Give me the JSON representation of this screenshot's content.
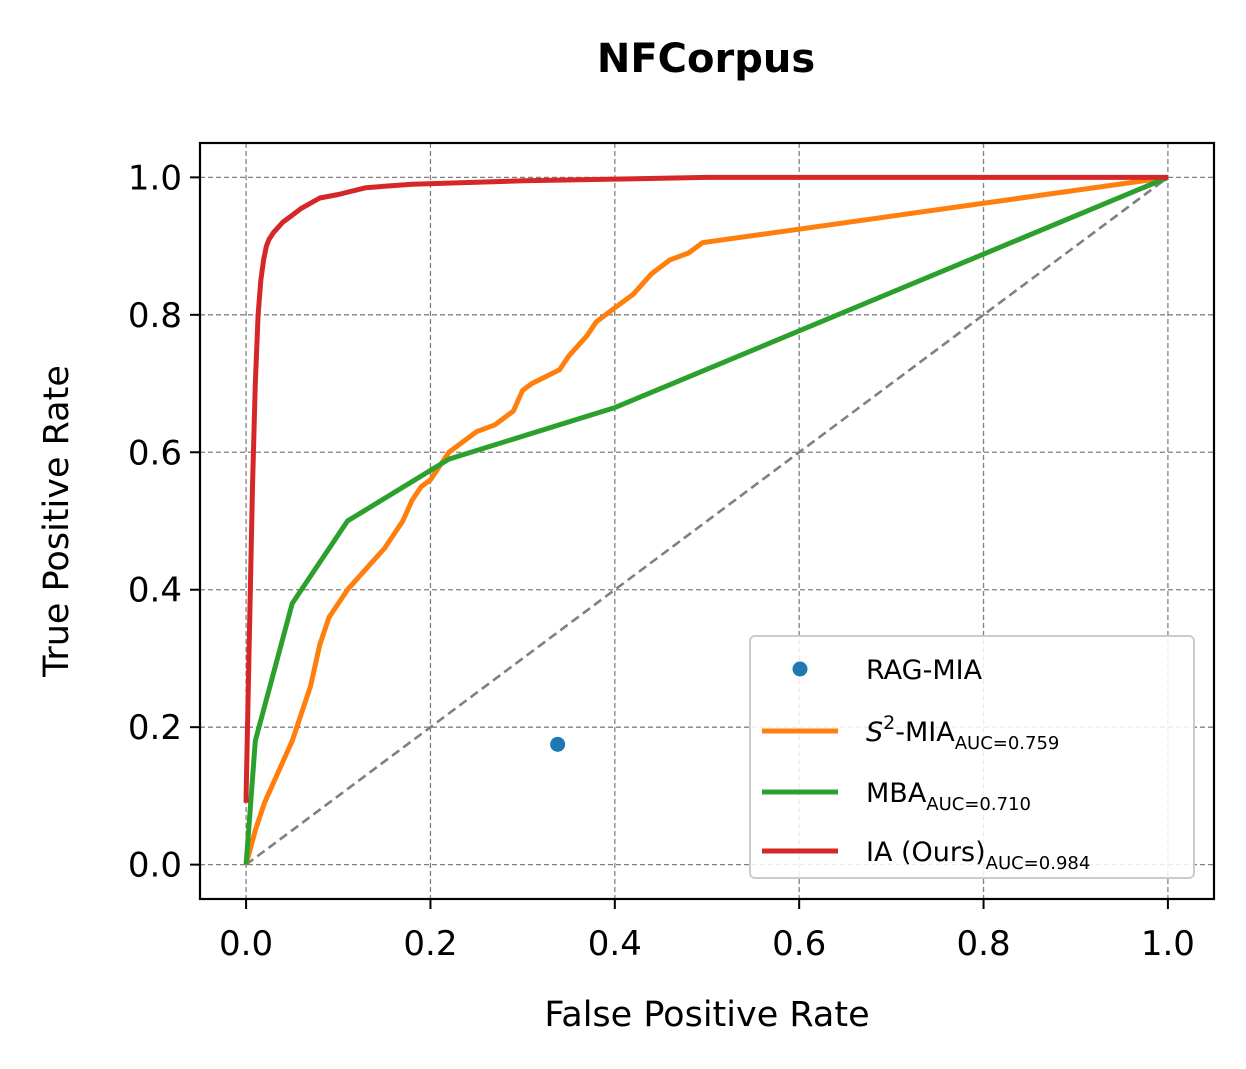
{
  "chart_data": {
    "type": "line",
    "title": "NFCorpus",
    "xlabel": "False Positive Rate",
    "ylabel": "True Positive Rate",
    "xlim": [
      -0.05,
      1.05
    ],
    "ylim": [
      -0.05,
      1.05
    ],
    "xticks": [
      0.0,
      0.2,
      0.4,
      0.6,
      0.8,
      1.0
    ],
    "yticks": [
      0.0,
      0.2,
      0.4,
      0.6,
      0.8,
      1.0
    ],
    "xtick_labels": [
      "0.0",
      "0.2",
      "0.4",
      "0.6",
      "0.8",
      "1.0"
    ],
    "ytick_labels": [
      "0.0",
      "0.2",
      "0.4",
      "0.6",
      "0.8",
      "1.0"
    ],
    "grid": true,
    "legend_position": "lower-right",
    "diagonal": {
      "x": [
        0,
        1
      ],
      "y": [
        0,
        1
      ],
      "style": "dashed",
      "color": "#808080"
    },
    "series": [
      {
        "legend_main": "RAG-MIA",
        "legend_sub": "",
        "type": "scatter",
        "color": "#1f77b4",
        "x": [
          0.338
        ],
        "y": [
          0.175
        ]
      },
      {
        "legend_main": "S",
        "legend_sup": "2",
        "legend_rest": "-MIA",
        "legend_sub": "AUC=0.759",
        "type": "line",
        "color": "#ff7f0e",
        "x": [
          0.0,
          0.01,
          0.02,
          0.03,
          0.04,
          0.05,
          0.06,
          0.07,
          0.08,
          0.085,
          0.09,
          0.1,
          0.11,
          0.13,
          0.15,
          0.16,
          0.17,
          0.18,
          0.19,
          0.2,
          0.21,
          0.22,
          0.25,
          0.27,
          0.29,
          0.3,
          0.31,
          0.34,
          0.35,
          0.37,
          0.38,
          0.4,
          0.42,
          0.44,
          0.46,
          0.48,
          0.495,
          1.0
        ],
        "y": [
          0.0,
          0.05,
          0.09,
          0.12,
          0.15,
          0.18,
          0.22,
          0.26,
          0.32,
          0.34,
          0.36,
          0.38,
          0.4,
          0.43,
          0.46,
          0.48,
          0.5,
          0.53,
          0.55,
          0.56,
          0.58,
          0.6,
          0.63,
          0.64,
          0.66,
          0.69,
          0.7,
          0.72,
          0.74,
          0.77,
          0.79,
          0.81,
          0.83,
          0.86,
          0.88,
          0.89,
          0.905,
          1.0
        ]
      },
      {
        "legend_main": "MBA",
        "legend_sub": "AUC=0.710",
        "type": "line",
        "color": "#2ca02c",
        "x": [
          0.0,
          0.01,
          0.05,
          0.11,
          0.22,
          0.4,
          1.0
        ],
        "y": [
          0.0,
          0.18,
          0.38,
          0.5,
          0.59,
          0.665,
          1.0
        ]
      },
      {
        "legend_main": "IA (Ours)",
        "legend_sub": "AUC=0.984",
        "type": "line",
        "color": "#d62728",
        "x": [
          0.0,
          0.0,
          0.003,
          0.007,
          0.01,
          0.013,
          0.016,
          0.019,
          0.022,
          0.025,
          0.03,
          0.04,
          0.05,
          0.06,
          0.08,
          0.1,
          0.13,
          0.18,
          0.3,
          0.5,
          1.0
        ],
        "y": [
          0.09,
          0.1,
          0.3,
          0.55,
          0.7,
          0.8,
          0.85,
          0.88,
          0.9,
          0.91,
          0.92,
          0.935,
          0.945,
          0.955,
          0.97,
          0.975,
          0.985,
          0.99,
          0.995,
          1.0,
          1.0
        ]
      }
    ]
  }
}
